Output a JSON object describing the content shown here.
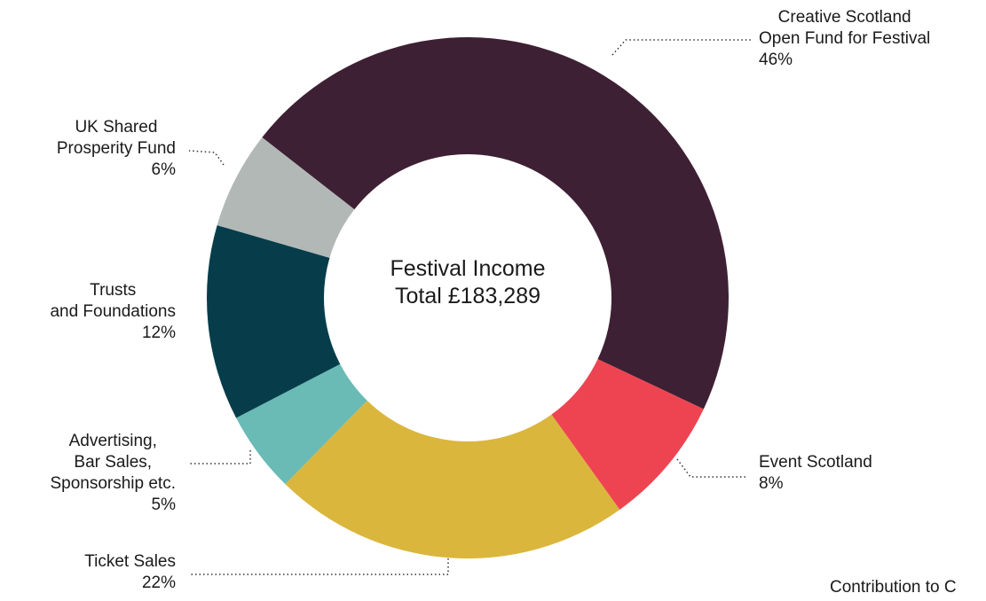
{
  "chart_data": {
    "type": "pie",
    "title": "Festival Income\nTotal £183,289",
    "slices": [
      {
        "label": "Creative Scotland\nOpen Fund for Festival",
        "value": 46,
        "value_label": "46%",
        "color": "#3e2034"
      },
      {
        "label": "Event Scotland",
        "value": 8,
        "value_label": "8%",
        "color": "#ee4451"
      },
      {
        "label": "Ticket Sales",
        "value": 22,
        "value_label": "22%",
        "color": "#dab63d"
      },
      {
        "label": "Advertising,\nBar Sales,\nSponsorship etc.",
        "value": 5,
        "value_label": "5%",
        "color": "#6abab6"
      },
      {
        "label": "Trusts\nand Foundations",
        "value": 12,
        "value_label": "12%",
        "color": "#073d4a"
      },
      {
        "label": "UK Shared\nProsperity Fund",
        "value": 6,
        "value_label": "6%",
        "color": "#b2b8b6"
      }
    ]
  },
  "footer_note": "Contribution to C"
}
